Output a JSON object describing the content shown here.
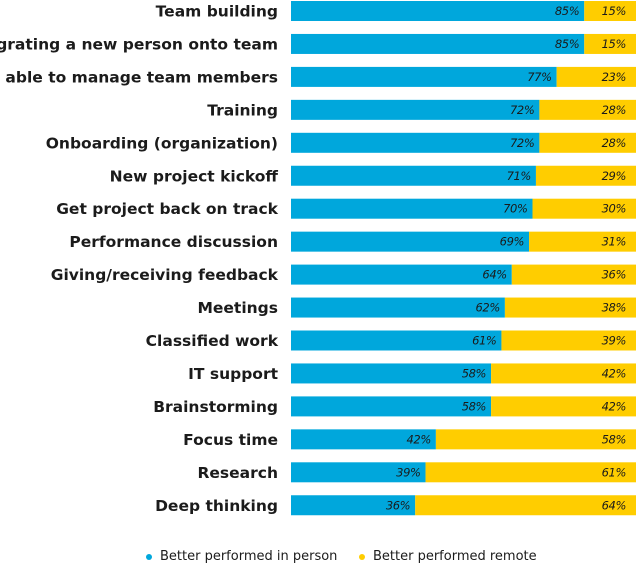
{
  "colors": {
    "in_person": "#00a7dc",
    "remote": "#ffcd00"
  },
  "chart_data": {
    "type": "bar",
    "orientation": "horizontal",
    "stacked": true,
    "xlim": [
      0,
      100
    ],
    "categories": [
      "Team building",
      "Integrating a new person onto team",
      "Better able to manage team members",
      "Training",
      "Onboarding (organization)",
      "New project kickoff",
      "Get project back on track",
      "Performance discussion",
      "Giving/receiving feedback",
      "Meetings",
      "Classified work",
      "IT support",
      "Brainstorming",
      "Focus time",
      "Research",
      "Deep thinking"
    ],
    "series": [
      {
        "name": "Better performed in person",
        "values": [
          85,
          85,
          77,
          72,
          72,
          71,
          70,
          69,
          64,
          62,
          61,
          58,
          58,
          42,
          39,
          36
        ]
      },
      {
        "name": "Better performed remote",
        "values": [
          15,
          15,
          23,
          28,
          28,
          29,
          30,
          31,
          36,
          38,
          39,
          42,
          42,
          58,
          61,
          64
        ]
      }
    ],
    "value_suffix": "%",
    "legend": "bottom",
    "grid": false
  },
  "legend": {
    "in_person_label": "Better performed in person",
    "remote_label": "Better performed remote"
  }
}
